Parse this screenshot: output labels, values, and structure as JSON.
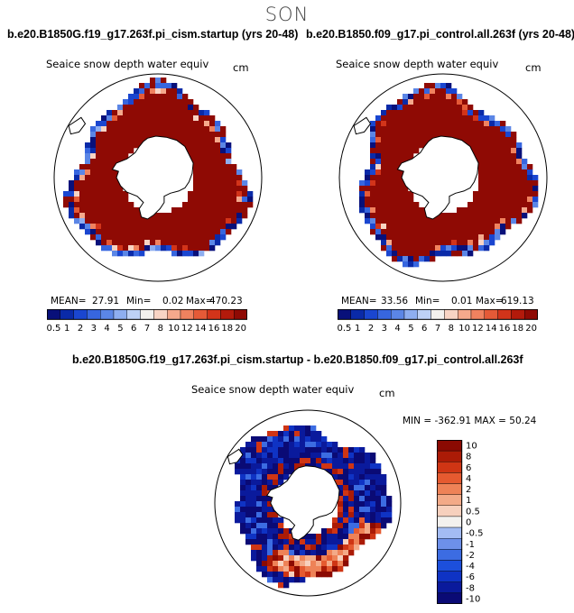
{
  "page": {
    "title": "SON"
  },
  "palette": {
    "abs": [
      "#08107a",
      "#0a2aa8",
      "#1a46d0",
      "#3766df",
      "#5b86e6",
      "#8eaef0",
      "#bed1f6",
      "#f3f1ee",
      "#f8d4c4",
      "#f5a98c",
      "#f0825f",
      "#e55a37",
      "#d2341a",
      "#b31a0b",
      "#8f0a04"
    ],
    "diff": [
      "#0a0a75",
      "#0a1a9c",
      "#0f33c4",
      "#1c4fdc",
      "#3c6ce2",
      "#6d90ea",
      "#a4bcf3",
      "#f3f1ee",
      "#f7d0bd",
      "#f3aa88",
      "#ee8257",
      "#e55a30",
      "#cf3514",
      "#ab1b06",
      "#8b0a02"
    ],
    "land": "#ffffff",
    "coast": "#000000"
  },
  "chart_data": [
    {
      "id": "left-map",
      "type": "heatmap",
      "projection": "south-polar-stereographic",
      "title": "b.e20.B1850G.f19_g17.263f.pi_cism.startup (yrs 20-48)",
      "variable": "Seaice snow depth water equiv",
      "units": "cm",
      "stats": {
        "mean_label": "MEAN=",
        "mean": "27.91",
        "min_label": "Min=",
        "min": "0.02",
        "max_label": "Max=",
        "max": "470.23"
      },
      "colorbar": {
        "orientation": "horizontal",
        "ticks": [
          "0.5",
          "1",
          "2",
          "3",
          "4",
          "5",
          "6",
          "7",
          "8",
          "10",
          "12",
          "14",
          "16",
          "18",
          "20"
        ]
      },
      "field": {
        "ice_edge_deg": 30,
        "edge_low_band_deg": 5,
        "dominant_value": 20
      }
    },
    {
      "id": "right-map",
      "type": "heatmap",
      "projection": "south-polar-stereographic",
      "title": "b.e20.B1850.f09_g17.pi_control.all.263f (yrs 20-48)",
      "variable": "Seaice snow depth water equiv",
      "units": "cm",
      "stats": {
        "mean_label": "MEAN=",
        "mean": "33.56",
        "min_label": "Min=",
        "min": "0.01",
        "max_label": "Max=",
        "max": "619.13"
      },
      "colorbar": {
        "orientation": "horizontal",
        "ticks": [
          "0.5",
          "1",
          "2",
          "3",
          "4",
          "5",
          "6",
          "7",
          "8",
          "10",
          "12",
          "14",
          "16",
          "18",
          "20"
        ]
      },
      "field": {
        "ice_edge_deg": 30,
        "edge_low_band_deg": 4,
        "dominant_value": 20
      }
    },
    {
      "id": "diff-map",
      "type": "heatmap",
      "projection": "south-polar-stereographic",
      "title": "b.e20.B1850G.f19_g17.263f.pi_cism.startup - b.e20.B1850.f09_g17.pi_control.all.263f",
      "variable": "Seaice snow depth water equiv",
      "units": "cm",
      "stats": {
        "text": "MIN = -362.91  MAX =  50.24",
        "min": -362.91,
        "max": 50.24
      },
      "colorbar": {
        "orientation": "vertical",
        "ticks": [
          "10",
          "8",
          "6",
          "4",
          "2",
          "1",
          "0.5",
          "0",
          "-0.5",
          "-1",
          "-2",
          "-4",
          "-6",
          "-8",
          "-10"
        ]
      },
      "field": {
        "ice_edge_deg": 30,
        "dominant_value": -10
      }
    }
  ]
}
